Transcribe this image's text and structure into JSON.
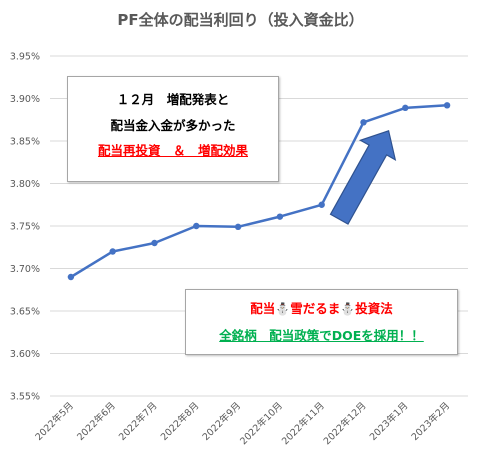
{
  "chart_data": {
    "type": "line",
    "title": "PF全体の配当利回り（投入資金比）",
    "categories": [
      "2022年5月",
      "2022年6月",
      "2022年7月",
      "2022年8月",
      "2022年9月",
      "2022年10月",
      "2022年11月",
      "2022年12月",
      "2023年1月",
      "2023年2月"
    ],
    "series": [
      {
        "values": [
          3.69,
          3.72,
          3.73,
          3.75,
          3.749,
          3.761,
          3.775,
          3.872,
          3.889,
          3.892
        ]
      }
    ],
    "y_ticks": [
      "3.55%",
      "3.60%",
      "3.65%",
      "3.70%",
      "3.75%",
      "3.80%",
      "3.85%",
      "3.90%",
      "3.95%"
    ],
    "ylim": [
      3.55,
      3.95
    ],
    "grid": true,
    "legend": "none",
    "colors": {
      "line": "#4472c4",
      "arrow": "#4472c4",
      "grid": "#d9d9d9"
    },
    "annotations": {
      "top_box": {
        "line1": "１２月　増配発表と",
        "line2": "配当金入金が多かった",
        "line3": "配当再投資　＆　増配効果"
      },
      "bottom_box": {
        "line1_a": "配当",
        "line1_icon_a": "⛄",
        "line1_b": "雪だるま",
        "line1_icon_b": "⛄",
        "line1_c": "投資法",
        "line2": "全銘柄　配当政策でDOEを採用！！"
      }
    }
  }
}
